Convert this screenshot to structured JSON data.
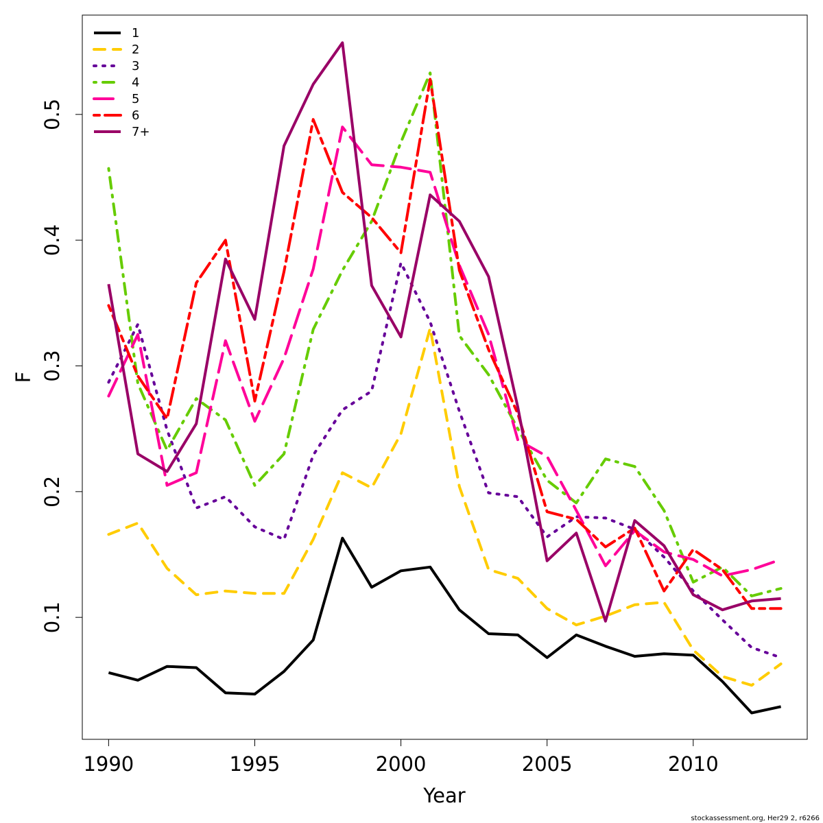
{
  "chart_data": {
    "type": "line",
    "title": "",
    "xlabel": "Year",
    "ylabel": "F",
    "xlim": [
      1989.1,
      2013.9
    ],
    "ylim": [
      0.003,
      0.579
    ],
    "x_ticks": [
      1990,
      1995,
      2000,
      2005,
      2010
    ],
    "x_tick_labels": [
      "1990",
      "1995",
      "2000",
      "2005",
      "2010"
    ],
    "y_ticks": [
      0.1,
      0.2,
      0.3,
      0.4,
      0.5
    ],
    "y_tick_labels": [
      "0.1",
      "0.2",
      "0.3",
      "0.4",
      "0.5"
    ],
    "grid": false,
    "legend_position": "top-left",
    "x": [
      1990,
      1991,
      1992,
      1993,
      1994,
      1995,
      1996,
      1997,
      1998,
      1999,
      2000,
      2001,
      2002,
      2003,
      2004,
      2005,
      2006,
      2007,
      2008,
      2009,
      2010,
      2011,
      2012,
      2013
    ],
    "series": [
      {
        "name": "1",
        "color": "#000000",
        "dash": "solid",
        "values": [
          0.056,
          0.05,
          0.061,
          0.06,
          0.04,
          0.039,
          0.057,
          0.082,
          0.163,
          0.124,
          0.137,
          0.14,
          0.106,
          0.087,
          0.086,
          0.068,
          0.086,
          0.077,
          0.069,
          0.071,
          0.07,
          0.049,
          0.024,
          0.029
        ]
      },
      {
        "name": "2",
        "color": "#FFCC00",
        "dash": "dashed",
        "values": [
          0.166,
          0.175,
          0.139,
          0.118,
          0.121,
          0.119,
          0.119,
          0.162,
          0.215,
          0.203,
          0.246,
          0.33,
          0.204,
          0.138,
          0.131,
          0.107,
          0.094,
          0.101,
          0.11,
          0.112,
          0.074,
          0.053,
          0.046,
          0.063
        ]
      },
      {
        "name": "3",
        "color": "#660099",
        "dash": "dotted",
        "values": [
          0.287,
          0.333,
          0.249,
          0.187,
          0.196,
          0.172,
          0.162,
          0.229,
          0.265,
          0.28,
          0.382,
          0.335,
          0.264,
          0.199,
          0.196,
          0.164,
          0.18,
          0.179,
          0.17,
          0.148,
          0.121,
          0.098,
          0.076,
          0.068
        ]
      },
      {
        "name": "4",
        "color": "#66CC00",
        "dash": "dotdash",
        "values": [
          0.457,
          0.286,
          0.233,
          0.274,
          0.257,
          0.205,
          0.23,
          0.329,
          0.376,
          0.415,
          0.478,
          0.533,
          0.324,
          0.293,
          0.25,
          0.209,
          0.191,
          0.226,
          0.22,
          0.185,
          0.128,
          0.14,
          0.117,
          0.123
        ]
      },
      {
        "name": "5",
        "color": "#FF0099",
        "dash": "longdash",
        "values": [
          0.276,
          0.325,
          0.205,
          0.215,
          0.32,
          0.256,
          0.306,
          0.377,
          0.49,
          0.46,
          0.458,
          0.454,
          0.38,
          0.325,
          0.241,
          0.228,
          0.185,
          0.141,
          0.169,
          0.152,
          0.146,
          0.133,
          0.138,
          0.146
        ]
      },
      {
        "name": "6",
        "color": "#FF0000",
        "dash": "twodash",
        "values": [
          0.348,
          0.292,
          0.258,
          0.366,
          0.4,
          0.272,
          0.375,
          0.496,
          0.438,
          0.418,
          0.39,
          0.528,
          0.376,
          0.313,
          0.262,
          0.184,
          0.178,
          0.156,
          0.171,
          0.121,
          0.154,
          0.138,
          0.107,
          0.107
        ]
      },
      {
        "name": "7+",
        "color": "#990066",
        "dash": "solid",
        "values": [
          0.365,
          0.23,
          0.216,
          0.254,
          0.385,
          0.337,
          0.475,
          0.524,
          0.557,
          0.364,
          0.323,
          0.436,
          0.415,
          0.371,
          0.267,
          0.145,
          0.167,
          0.097,
          0.177,
          0.157,
          0.118,
          0.106,
          0.113,
          0.115
        ]
      }
    ],
    "annotations": [
      "stockassessment.org, Her29 2, r6266"
    ]
  }
}
